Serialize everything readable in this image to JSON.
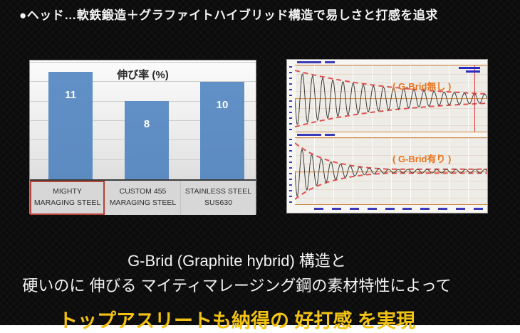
{
  "header": {
    "bullet": "●ヘッド…軟鉄鍛造＋グラファイトハイブリッド構造で易しさと打感を追求"
  },
  "footer": {
    "line1": "G-Brid (Graphite hybrid) 構造と",
    "line2": "硬いのに 伸びる マイティマレージング鋼の素材特性によって",
    "line3": "トップアスリートも納得の 好打感 を実現"
  },
  "colors": {
    "bar_blue": "#6190c6",
    "highlight_red": "#b5443a",
    "accent_orange": "#e8731c",
    "envelope_red": "#e05050",
    "footer_yellow": "#f2c313",
    "micro_blue": "#3a3ab8"
  },
  "chart_data": [
    {
      "type": "bar",
      "title": "伸び率 (%)",
      "categories": [
        "MIGHTY MARAGING STEEL",
        "CUSTOM 455 MARAGING STEEL",
        "STAINLESS STEEL SUS630"
      ],
      "values": [
        11,
        8,
        10
      ],
      "value_labels": [
        "11",
        "8",
        "10"
      ],
      "highlight_index": 0,
      "ylim": [
        0,
        12.2
      ],
      "gridline_step": 2,
      "grid": "horizontal",
      "legend": "none"
    },
    {
      "type": "line",
      "title": "( G-Brid無し )",
      "model": "damped_sine",
      "amplitude": 1.0,
      "decay_rate": 1.8,
      "cycles": 19,
      "tail_floor": 0.13,
      "marker_x_fraction": 0.935,
      "envelope_style": "red dashed exponential, slow decay"
    },
    {
      "type": "line",
      "title": "( G-Brid有り )",
      "model": "damped_sine",
      "amplitude": 1.0,
      "decay_rate": 5.5,
      "cycles": 20,
      "tail_floor": 0.07,
      "envelope_style": "red dashed exponential, fast decay"
    }
  ]
}
